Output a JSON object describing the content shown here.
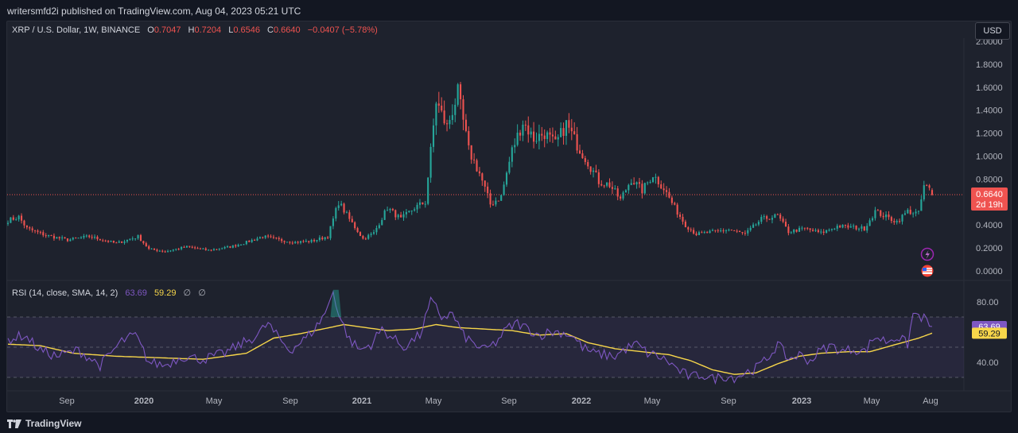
{
  "header": {
    "publisher_line": "writersmfd2i published on TradingView.com, Aug 04, 2023 05:21 UTC"
  },
  "legend": {
    "symbol": "XRP / U.S. Dollar, 1W, BINANCE",
    "o_label": "O",
    "o_value": "0.7047",
    "h_label": "H",
    "h_value": "0.7204",
    "l_label": "L",
    "l_value": "0.6546",
    "c_label": "C",
    "c_value": "0.6640",
    "change": "−0.0407 (−5.78%)"
  },
  "currency_button": "USD",
  "price_badge": {
    "value": "0.6640",
    "countdown": "2d 19h"
  },
  "rsi_legend": {
    "label": "RSI (14, close, SMA, 14, 2)",
    "rsi_value": "63.69",
    "sma_value": "59.29",
    "extra1": "∅",
    "extra2": "∅"
  },
  "rsi_badges": {
    "rsi": "63.69",
    "sma": "59.29"
  },
  "footer": {
    "brand": "TradingView"
  },
  "colors": {
    "up": "#26a69a",
    "down": "#ef5350",
    "rsi": "#7e57c2",
    "sma": "#f7d64a",
    "bg": "#1e222d"
  },
  "chart_data": [
    {
      "type": "candlestick",
      "title": "XRP / U.S. Dollar, 1W, BINANCE",
      "ylim": [
        0,
        2.0
      ],
      "y_ticks": [
        "2.0000",
        "1.8000",
        "1.6000",
        "1.4000",
        "1.2000",
        "1.0000",
        "0.8000",
        "0.4000",
        "0.2000",
        "0.0000"
      ],
      "x_ticks": [
        "Sep",
        "2020",
        "May",
        "Sep",
        "2021",
        "May",
        "Sep",
        "2022",
        "May",
        "Sep",
        "2023",
        "May",
        "Aug"
      ],
      "last_price": 0.664,
      "anchors": [
        [
          0,
          0.44
        ],
        [
          4,
          0.47
        ],
        [
          7,
          0.37
        ],
        [
          14,
          0.31
        ],
        [
          22,
          0.27
        ],
        [
          30,
          0.3
        ],
        [
          40,
          0.24
        ],
        [
          48,
          0.3
        ],
        [
          52,
          0.19
        ],
        [
          58,
          0.17
        ],
        [
          66,
          0.21
        ],
        [
          74,
          0.18
        ],
        [
          82,
          0.21
        ],
        [
          88,
          0.25
        ],
        [
          94,
          0.3
        ],
        [
          100,
          0.27
        ],
        [
          106,
          0.25
        ],
        [
          112,
          0.26
        ],
        [
          118,
          0.3
        ],
        [
          122,
          0.6
        ],
        [
          126,
          0.45
        ],
        [
          131,
          0.28
        ],
        [
          135,
          0.33
        ],
        [
          140,
          0.55
        ],
        [
          145,
          0.45
        ],
        [
          150,
          0.55
        ],
        [
          154,
          0.6
        ],
        [
          158,
          1.48
        ],
        [
          162,
          1.25
        ],
        [
          166,
          1.55
        ],
        [
          170,
          1.05
        ],
        [
          174,
          0.85
        ],
        [
          178,
          0.58
        ],
        [
          182,
          0.65
        ],
        [
          186,
          1.05
        ],
        [
          190,
          1.3
        ],
        [
          194,
          1.15
        ],
        [
          198,
          1.2
        ],
        [
          202,
          1.1
        ],
        [
          206,
          1.28
        ],
        [
          210,
          1.1
        ],
        [
          214,
          0.95
        ],
        [
          218,
          0.78
        ],
        [
          222,
          0.75
        ],
        [
          226,
          0.62
        ],
        [
          230,
          0.8
        ],
        [
          234,
          0.7
        ],
        [
          238,
          0.84
        ],
        [
          242,
          0.72
        ],
        [
          246,
          0.55
        ],
        [
          250,
          0.4
        ],
        [
          254,
          0.32
        ],
        [
          260,
          0.34
        ],
        [
          266,
          0.36
        ],
        [
          272,
          0.32
        ],
        [
          278,
          0.45
        ],
        [
          284,
          0.48
        ],
        [
          288,
          0.34
        ],
        [
          294,
          0.37
        ],
        [
          300,
          0.33
        ],
        [
          306,
          0.39
        ],
        [
          312,
          0.38
        ],
        [
          316,
          0.37
        ],
        [
          320,
          0.52
        ],
        [
          324,
          0.47
        ],
        [
          328,
          0.43
        ],
        [
          332,
          0.52
        ],
        [
          336,
          0.5
        ],
        [
          338,
          0.74
        ],
        [
          340,
          0.71
        ],
        [
          341,
          0.664
        ]
      ]
    },
    {
      "type": "line",
      "title": "RSI (14, close, SMA, 14, 2)",
      "ylim": [
        25,
        85
      ],
      "y_ticks": [
        "80.00",
        "40.00"
      ],
      "band": [
        30,
        70
      ],
      "middle": 50,
      "series": [
        {
          "name": "RSI",
          "values": [
            [
              0,
              55
            ],
            [
              6,
              58
            ],
            [
              12,
              48
            ],
            [
              18,
              44
            ],
            [
              26,
              48
            ],
            [
              34,
              38
            ],
            [
              42,
              54
            ],
            [
              47,
              58
            ],
            [
              52,
              40
            ],
            [
              58,
              38
            ],
            [
              64,
              44
            ],
            [
              72,
              42
            ],
            [
              80,
              46
            ],
            [
              86,
              52
            ],
            [
              92,
              58
            ],
            [
              96,
              66
            ],
            [
              98,
              60
            ],
            [
              104,
              48
            ],
            [
              110,
              56
            ],
            [
              114,
              64
            ],
            [
              118,
              76
            ],
            [
              120,
              88
            ],
            [
              122,
              72
            ],
            [
              126,
              55
            ],
            [
              130,
              48
            ],
            [
              134,
              52
            ],
            [
              138,
              62
            ],
            [
              142,
              56
            ],
            [
              146,
              50
            ],
            [
              152,
              58
            ],
            [
              156,
              80
            ],
            [
              158,
              76
            ],
            [
              160,
              70
            ],
            [
              164,
              72
            ],
            [
              168,
              58
            ],
            [
              172,
              52
            ],
            [
              176,
              48
            ],
            [
              180,
              53
            ],
            [
              184,
              62
            ],
            [
              188,
              66
            ],
            [
              192,
              62
            ],
            [
              196,
              58
            ],
            [
              200,
              60
            ],
            [
              204,
              60
            ],
            [
              208,
              58
            ],
            [
              212,
              50
            ],
            [
              216,
              46
            ],
            [
              220,
              45
            ],
            [
              224,
              44
            ],
            [
              228,
              49
            ],
            [
              232,
              52
            ],
            [
              236,
              46
            ],
            [
              240,
              44
            ],
            [
              244,
              40
            ],
            [
              248,
              34
            ],
            [
              252,
              30
            ],
            [
              256,
              32
            ],
            [
              260,
              29
            ],
            [
              264,
              31
            ],
            [
              268,
              30
            ],
            [
              272,
              33
            ],
            [
              276,
              36
            ],
            [
              280,
              42
            ],
            [
              284,
              52
            ],
            [
              288,
              42
            ],
            [
              292,
              45
            ],
            [
              296,
              41
            ],
            [
              300,
              48
            ],
            [
              304,
              51
            ],
            [
              308,
              47
            ],
            [
              312,
              49
            ],
            [
              316,
              47
            ],
            [
              320,
              57
            ],
            [
              324,
              54
            ],
            [
              328,
              57
            ],
            [
              332,
              52
            ],
            [
              334,
              72
            ],
            [
              336,
              71
            ],
            [
              338,
              69
            ],
            [
              341,
              63.69
            ]
          ]
        },
        {
          "name": "SMA",
          "values": [
            [
              0,
              52
            ],
            [
              12,
              51
            ],
            [
              24,
              46
            ],
            [
              40,
              44
            ],
            [
              56,
              43
            ],
            [
              72,
              42
            ],
            [
              88,
              46
            ],
            [
              98,
              56
            ],
            [
              108,
              59
            ],
            [
              116,
              62
            ],
            [
              124,
              65
            ],
            [
              132,
              63
            ],
            [
              140,
              61
            ],
            [
              150,
              62
            ],
            [
              158,
              65
            ],
            [
              166,
              63
            ],
            [
              176,
              62
            ],
            [
              186,
              61
            ],
            [
              196,
              58
            ],
            [
              206,
              59
            ],
            [
              214,
              53
            ],
            [
              224,
              49
            ],
            [
              234,
              47
            ],
            [
              244,
              45
            ],
            [
              252,
              41
            ],
            [
              260,
              35
            ],
            [
              268,
              32
            ],
            [
              276,
              33
            ],
            [
              284,
              39
            ],
            [
              292,
              44
            ],
            [
              300,
              46
            ],
            [
              310,
              47
            ],
            [
              318,
              47
            ],
            [
              324,
              50
            ],
            [
              330,
              53
            ],
            [
              336,
              56
            ],
            [
              341,
              59.29
            ]
          ]
        }
      ]
    }
  ]
}
